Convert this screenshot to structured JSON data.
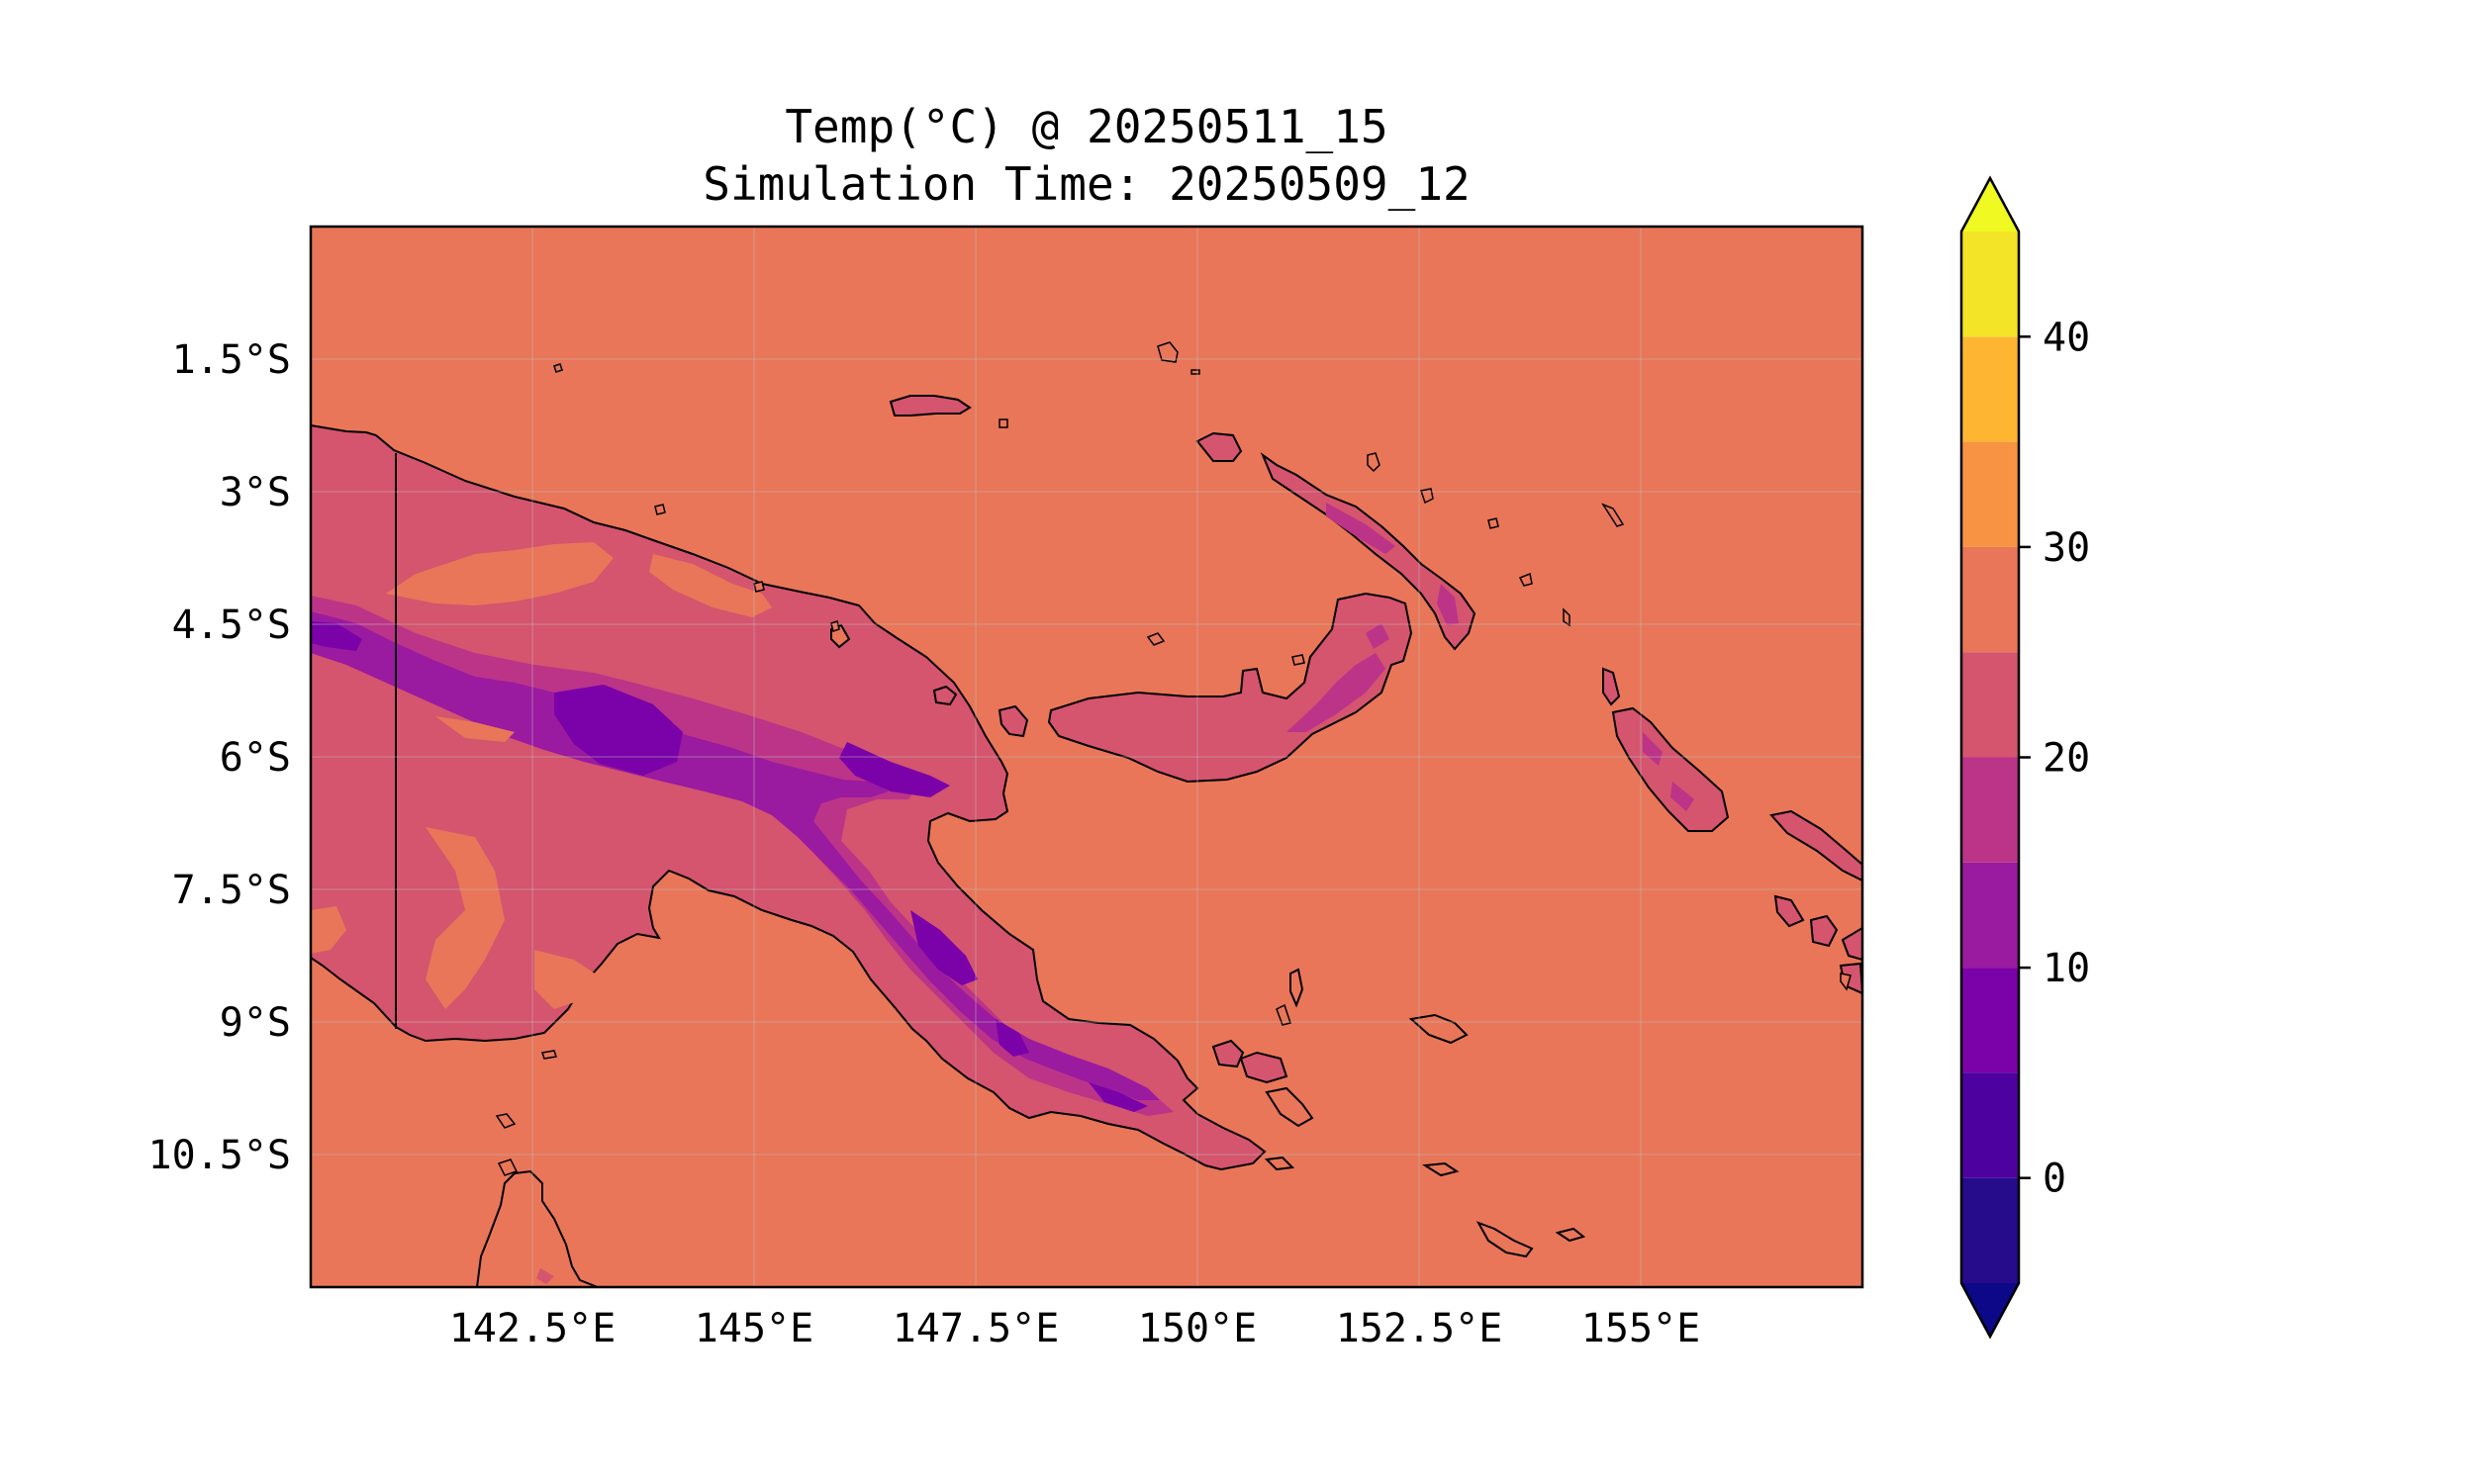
{
  "title": "Temp(°C) @ 20250511_15",
  "subtitle": "Simulation Time: 20250509_12",
  "map": {
    "region": "Papua New Guinea",
    "lon_range": [
      140.0,
      157.5
    ],
    "lat_range": [
      -12.0,
      0.0
    ],
    "x_ticks": [
      {
        "value": 142.5,
        "label": "142.5°E"
      },
      {
        "value": 145.0,
        "label": "145°E"
      },
      {
        "value": 147.5,
        "label": "147.5°E"
      },
      {
        "value": 150.0,
        "label": "150°E"
      },
      {
        "value": 152.5,
        "label": "152.5°E"
      },
      {
        "value": 155.0,
        "label": "155°E"
      }
    ],
    "y_ticks": [
      {
        "value": -1.5,
        "label": "1.5°S"
      },
      {
        "value": -3.0,
        "label": "3°S"
      },
      {
        "value": -4.5,
        "label": "4.5°S"
      },
      {
        "value": -6.0,
        "label": "6°S"
      },
      {
        "value": -7.5,
        "label": "7.5°S"
      },
      {
        "value": -9.0,
        "label": "9°S"
      },
      {
        "value": -10.5,
        "label": "10.5°S"
      }
    ],
    "gridlines": true,
    "ocean_level_celsius": 27.5
  },
  "colorbar": {
    "range": [
      -5,
      45
    ],
    "extend": "both",
    "levels": [
      {
        "min": -5,
        "max": 0,
        "color": "#260c8a"
      },
      {
        "min": 0,
        "max": 5,
        "color": "#4d02a0"
      },
      {
        "min": 5,
        "max": 10,
        "color": "#7a02a8"
      },
      {
        "min": 10,
        "max": 15,
        "color": "#9a1aa0"
      },
      {
        "min": 15,
        "max": 20,
        "color": "#bb3488"
      },
      {
        "min": 20,
        "max": 25,
        "color": "#d5546e"
      },
      {
        "min": 25,
        "max": 30,
        "color": "#e97658"
      },
      {
        "min": 30,
        "max": 35,
        "color": "#f79342"
      },
      {
        "min": 35,
        "max": 40,
        "color": "#feb632"
      },
      {
        "min": 40,
        "max": 45,
        "color": "#f3e428"
      }
    ],
    "under_color": "#0d0887",
    "over_color": "#f0f921",
    "ticks": [
      {
        "value": 0,
        "label": "0"
      },
      {
        "value": 10,
        "label": "10"
      },
      {
        "value": 20,
        "label": "20"
      },
      {
        "value": 30,
        "label": "30"
      },
      {
        "value": 40,
        "label": "40"
      }
    ]
  }
}
